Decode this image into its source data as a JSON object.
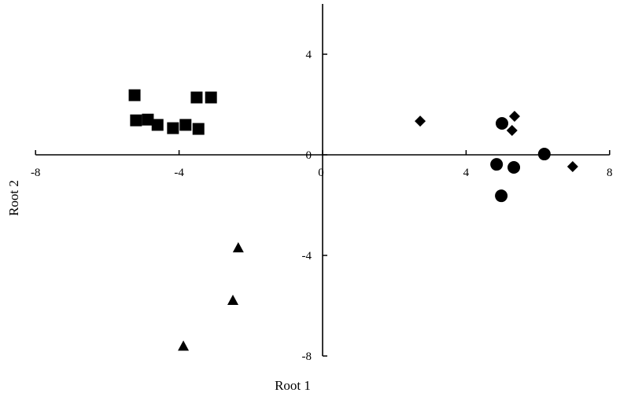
{
  "chart_data": {
    "type": "scatter",
    "xlabel": "Root 1",
    "ylabel": "Root 2",
    "xlim": [
      -8,
      8
    ],
    "ylim": [
      -8,
      6
    ],
    "xticks": [
      -8,
      -4,
      0,
      4,
      8
    ],
    "yticks": [
      4,
      0,
      -4,
      -8
    ],
    "xtick_labels": [
      "-8",
      "-4",
      "0",
      "4",
      "8"
    ],
    "ytick_labels": [
      "4",
      "0",
      "-4",
      "-8"
    ],
    "grid": false,
    "series": [
      {
        "marker": "square",
        "color": "#000000",
        "points": [
          [
            -5.24,
            2.37
          ],
          [
            -5.2,
            1.37
          ],
          [
            -4.87,
            1.4
          ],
          [
            -4.6,
            1.19
          ],
          [
            -4.17,
            1.06
          ],
          [
            -3.82,
            1.19
          ],
          [
            -3.51,
            2.28
          ],
          [
            -3.46,
            1.03
          ],
          [
            -3.11,
            2.28
          ]
        ]
      },
      {
        "marker": "triangle",
        "color": "#000000",
        "points": [
          [
            -2.35,
            -3.69
          ],
          [
            -2.5,
            -5.78
          ],
          [
            -3.88,
            -7.6
          ]
        ]
      },
      {
        "marker": "diamond",
        "color": "#000000",
        "points": [
          [
            2.72,
            1.34
          ],
          [
            5.35,
            1.53
          ],
          [
            5.28,
            0.97
          ],
          [
            6.97,
            -0.47
          ]
        ]
      },
      {
        "marker": "circle",
        "color": "#000000",
        "points": [
          [
            5.0,
            1.25
          ],
          [
            6.18,
            0.03
          ],
          [
            4.85,
            -0.38
          ],
          [
            5.33,
            -0.5
          ],
          [
            4.98,
            -1.63
          ]
        ]
      }
    ]
  }
}
